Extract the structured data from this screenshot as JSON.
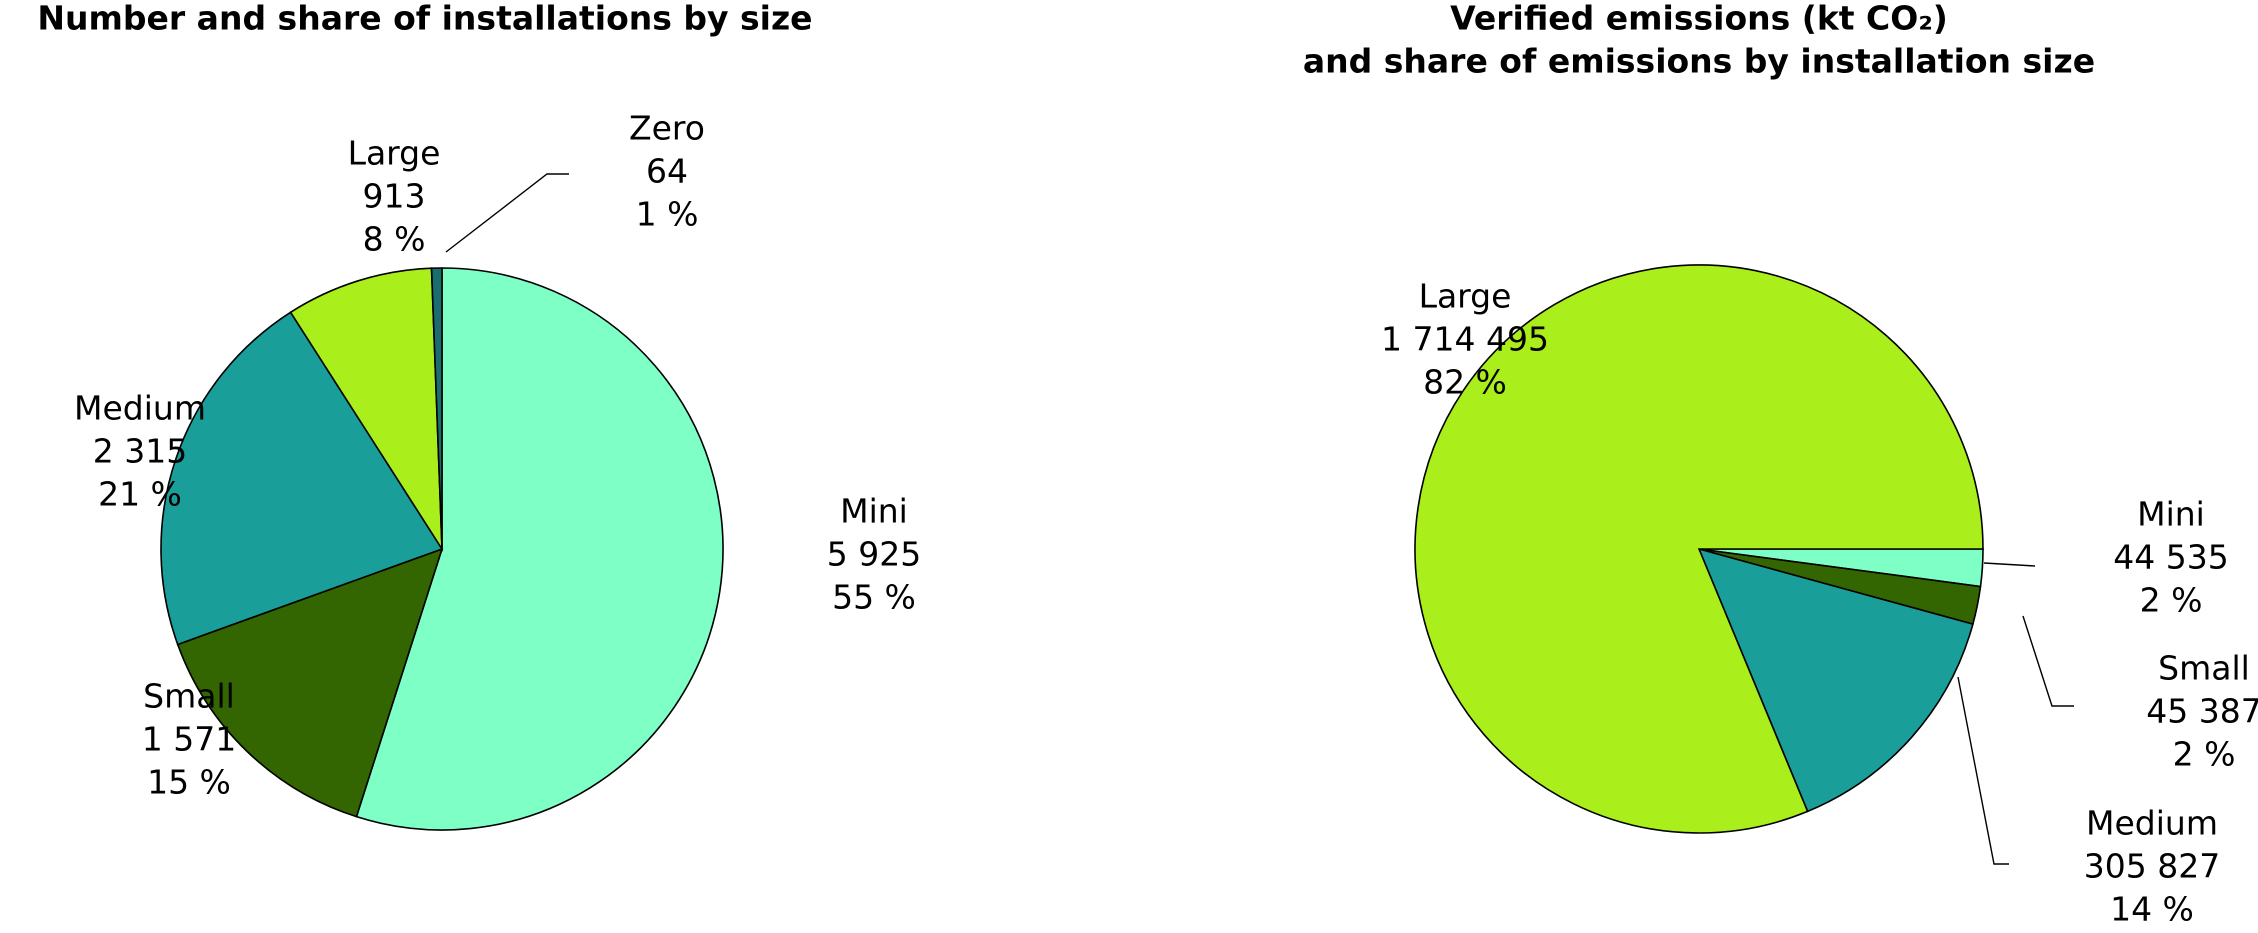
{
  "chart_data": [
    {
      "type": "pie",
      "title": [
        "Number and share of installations by size"
      ],
      "categories": [
        "Mini",
        "Small",
        "Medium",
        "Large",
        "Zero"
      ],
      "values": [
        5925,
        1571,
        2315,
        913,
        64
      ],
      "value_labels": [
        "5 925",
        "1 571",
        "2 315",
        "913",
        "64"
      ],
      "percents": [
        55,
        15,
        21,
        8,
        1
      ],
      "percent_labels": [
        "55 %",
        "15 %",
        "21 %",
        "8 %",
        "1 %"
      ],
      "colors": [
        "#7dffc6",
        "#336600",
        "#1a9e99",
        "#aaee1c",
        "#1a6e6e"
      ]
    },
    {
      "type": "pie",
      "title": [
        "Verified emissions (kt CO₂)",
        "and share of emissions by installation size"
      ],
      "categories": [
        "Mini",
        "Small",
        "Medium",
        "Large"
      ],
      "values": [
        44535,
        45387,
        305827,
        1714495
      ],
      "value_labels": [
        "44 535",
        "45 387",
        "305 827",
        "1 714 495"
      ],
      "percents": [
        2,
        2,
        14,
        82
      ],
      "percent_labels": [
        "2 %",
        "2 %",
        "14 %",
        "82 %"
      ],
      "colors": [
        "#7dffc6",
        "#336600",
        "#1a9e99",
        "#aaee1c"
      ]
    }
  ]
}
